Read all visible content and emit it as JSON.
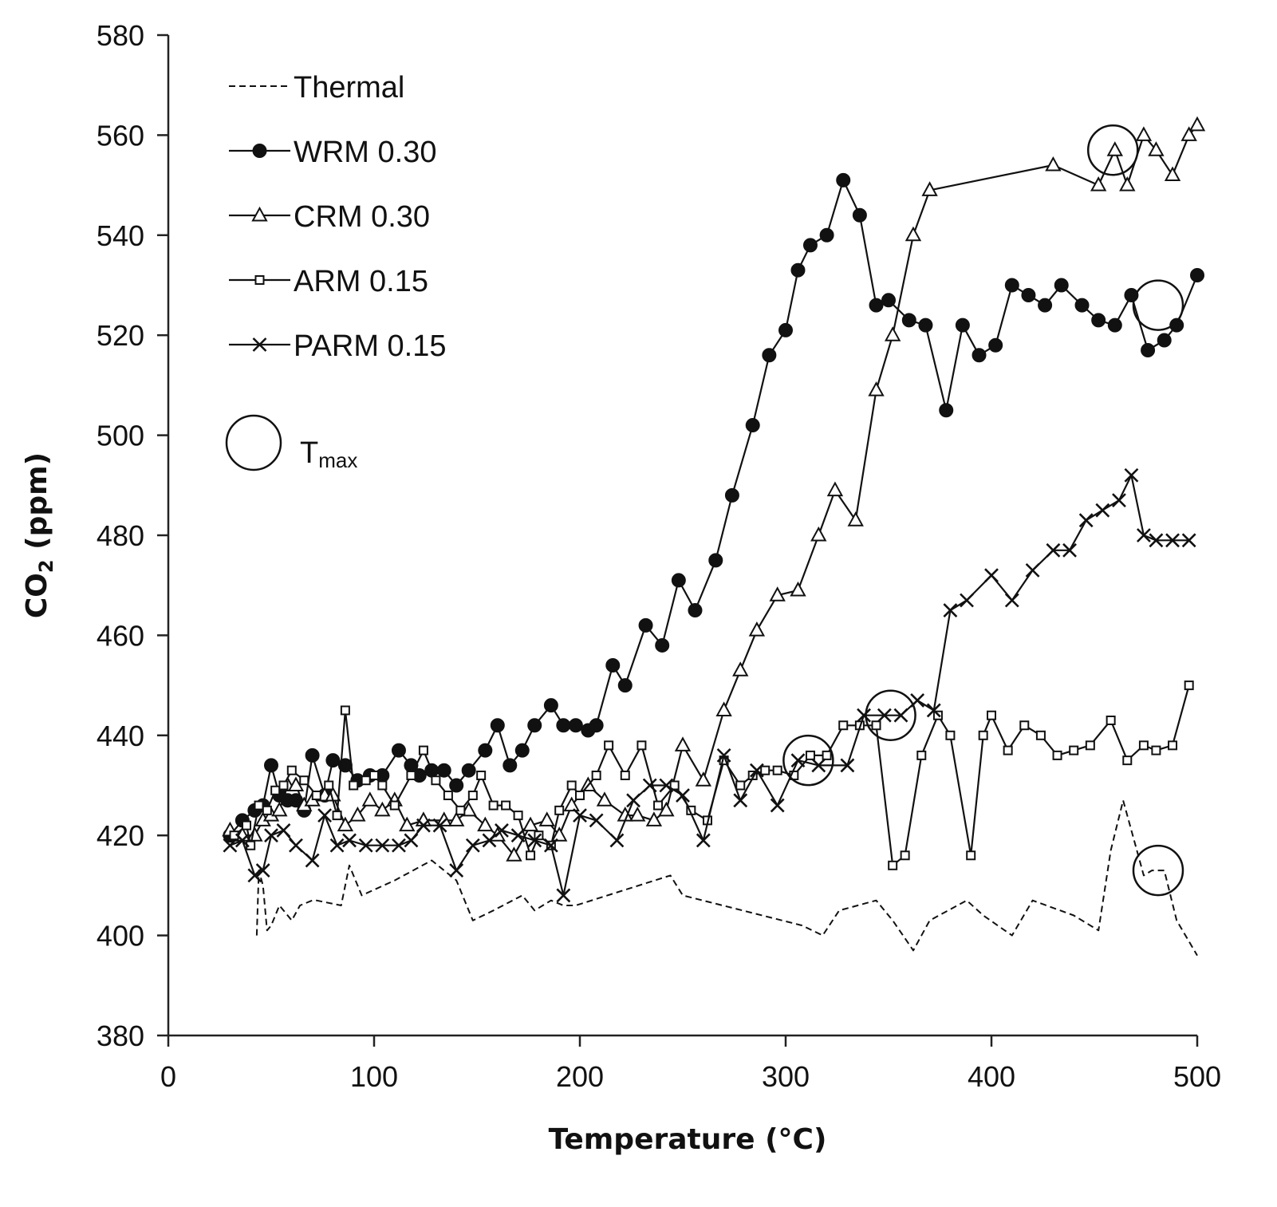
{
  "chart_data": {
    "type": "line",
    "xlabel": "Temperature (°C)",
    "ylabel_main": "CO",
    "ylabel_sub": "2",
    "ylabel_unit": " (ppm)",
    "xlim": [
      0,
      500
    ],
    "ylim": [
      380,
      580
    ],
    "xticks": [
      0,
      100,
      200,
      300,
      400,
      500
    ],
    "yticks": [
      380,
      400,
      420,
      440,
      460,
      480,
      500,
      520,
      540,
      560,
      580
    ],
    "grid": false,
    "legend_position": "top-left",
    "series": [
      {
        "name": "Thermal",
        "marker": "none",
        "dashed": true,
        "x": [
          43,
          44,
          46,
          48,
          50,
          54,
          60,
          64,
          70,
          72,
          84,
          88,
          94,
          110,
          128,
          140,
          148,
          158,
          172,
          178,
          186,
          192,
          198,
          244,
          250,
          308,
          318,
          326,
          344,
          352,
          362,
          370,
          388,
          396,
          410,
          420,
          440,
          452,
          458,
          464,
          470,
          474,
          478,
          484,
          490,
          500
        ],
        "y": [
          400,
          413,
          410,
          401,
          402,
          406,
          403,
          406,
          407,
          407,
          406,
          414,
          408,
          411,
          415,
          411,
          403,
          405,
          408,
          405,
          407,
          406,
          406,
          412,
          408,
          402,
          400,
          405,
          407,
          403,
          397,
          403,
          407,
          404,
          400,
          407,
          404,
          401,
          417,
          427,
          418,
          412,
          413,
          413,
          403,
          396
        ]
      },
      {
        "name": "WRM 0.30",
        "marker": "circle",
        "dashed": false,
        "x": [
          30,
          36,
          42,
          46,
          50,
          54,
          58,
          62,
          66,
          70,
          76,
          80,
          86,
          92,
          98,
          104,
          112,
          118,
          122,
          128,
          134,
          140,
          146,
          154,
          160,
          166,
          172,
          178,
          186,
          192,
          198,
          204,
          208,
          216,
          222,
          232,
          240,
          248,
          256,
          266,
          274,
          284,
          292,
          300,
          306,
          312,
          320,
          328,
          336,
          344,
          350,
          360,
          368,
          378,
          386,
          394,
          402,
          410,
          418,
          426,
          434,
          444,
          452,
          460,
          468,
          476,
          484,
          490,
          500
        ],
        "y": [
          420,
          423,
          425,
          426,
          434,
          428,
          427,
          427,
          425,
          436,
          428,
          435,
          434,
          431,
          432,
          432,
          437,
          434,
          432,
          433,
          433,
          430,
          433,
          437,
          442,
          434,
          437,
          442,
          446,
          442,
          442,
          441,
          442,
          454,
          450,
          462,
          458,
          471,
          465,
          475,
          488,
          502,
          516,
          521,
          533,
          538,
          540,
          551,
          544,
          526,
          527,
          523,
          522,
          505,
          522,
          516,
          518,
          530,
          528,
          526,
          530,
          526,
          523,
          522,
          528,
          517,
          519,
          522,
          532
        ]
      },
      {
        "name": "CRM 0.30",
        "marker": "triangle",
        "dashed": false,
        "x": [
          30,
          36,
          42,
          46,
          50,
          54,
          58,
          62,
          66,
          70,
          76,
          80,
          86,
          92,
          98,
          104,
          110,
          116,
          124,
          134,
          140,
          146,
          154,
          160,
          168,
          176,
          184,
          190,
          196,
          204,
          212,
          222,
          228,
          236,
          242,
          250,
          260,
          270,
          278,
          286,
          296,
          306,
          316,
          324,
          334,
          344,
          352,
          362,
          370,
          430,
          452,
          460,
          466,
          474,
          480,
          488,
          496,
          500
        ],
        "y": [
          421,
          420,
          420,
          423,
          424,
          425,
          430,
          430,
          426,
          427,
          428,
          428,
          422,
          424,
          427,
          425,
          427,
          422,
          423,
          423,
          423,
          425,
          422,
          420,
          416,
          422,
          423,
          420,
          426,
          430,
          427,
          424,
          424,
          423,
          425,
          438,
          431,
          445,
          453,
          461,
          468,
          469,
          480,
          489,
          483,
          509,
          520,
          540,
          549,
          554,
          550,
          557,
          550,
          560,
          557,
          552,
          560,
          562
        ]
      },
      {
        "name": "ARM 0.15",
        "marker": "square",
        "dashed": false,
        "x": [
          32,
          38,
          40,
          44,
          48,
          52,
          56,
          60,
          66,
          72,
          78,
          82,
          86,
          90,
          96,
          100,
          104,
          110,
          118,
          124,
          130,
          136,
          142,
          148,
          152,
          158,
          164,
          170,
          176,
          180,
          186,
          190,
          196,
          200,
          208,
          214,
          222,
          230,
          238,
          246,
          254,
          262,
          270,
          278,
          284,
          290,
          296,
          304,
          312,
          320,
          328,
          336,
          344,
          352,
          358,
          366,
          374,
          380,
          390,
          396,
          400,
          408,
          416,
          424,
          432,
          440,
          448,
          458,
          466,
          474,
          480,
          488,
          496
        ],
        "y": [
          420,
          422,
          418,
          426,
          425,
          429,
          430,
          433,
          431,
          428,
          430,
          424,
          445,
          430,
          431,
          432,
          430,
          426,
          432,
          437,
          431,
          428,
          425,
          428,
          432,
          426,
          426,
          424,
          416,
          420,
          418,
          425,
          430,
          428,
          432,
          438,
          432,
          438,
          426,
          430,
          425,
          423,
          435,
          430,
          432,
          433,
          433,
          432,
          436,
          436,
          442,
          442,
          442,
          414,
          416,
          436,
          444,
          440,
          416,
          440,
          444,
          437,
          442,
          440,
          436,
          437,
          438,
          443,
          435,
          438,
          437,
          438,
          450
        ]
      },
      {
        "name": "PARM 0.15",
        "marker": "x",
        "dashed": false,
        "x": [
          30,
          36,
          42,
          46,
          50,
          56,
          62,
          70,
          76,
          82,
          88,
          96,
          104,
          112,
          118,
          124,
          132,
          140,
          148,
          156,
          162,
          170,
          178,
          186,
          192,
          200,
          208,
          218,
          226,
          234,
          242,
          250,
          260,
          270,
          278,
          286,
          296,
          306,
          316,
          330,
          338,
          348,
          356,
          364,
          372,
          380,
          388,
          400,
          410,
          420,
          430,
          438,
          446,
          454,
          462,
          468,
          474,
          480,
          488,
          496
        ],
        "y": [
          418,
          419,
          412,
          413,
          420,
          421,
          418,
          415,
          424,
          418,
          419,
          418,
          418,
          418,
          419,
          422,
          422,
          413,
          418,
          419,
          421,
          420,
          419,
          418,
          408,
          424,
          423,
          419,
          427,
          430,
          430,
          428,
          419,
          436,
          427,
          433,
          426,
          435,
          434,
          434,
          444,
          444,
          444,
          447,
          445,
          465,
          467,
          472,
          467,
          473,
          477,
          477,
          483,
          485,
          487,
          492,
          480,
          479,
          479,
          479
        ]
      }
    ],
    "tmax_markers": [
      {
        "series": "Thermal",
        "x": 481,
        "y": 413
      },
      {
        "series": "WRM 0.30",
        "x": 481,
        "y": 526
      },
      {
        "series": "CRM 0.30",
        "x": 459,
        "y": 557
      },
      {
        "series": "ARM 0.15",
        "x": 351,
        "y": 444
      },
      {
        "series": "PARM 0.15",
        "x": 311,
        "y": 435
      }
    ],
    "legend": {
      "entries": [
        "Thermal",
        "WRM 0.30",
        "CRM 0.30",
        "ARM 0.15",
        "PARM 0.15"
      ],
      "tmax_label_main": "T",
      "tmax_label_sub": "max"
    }
  }
}
